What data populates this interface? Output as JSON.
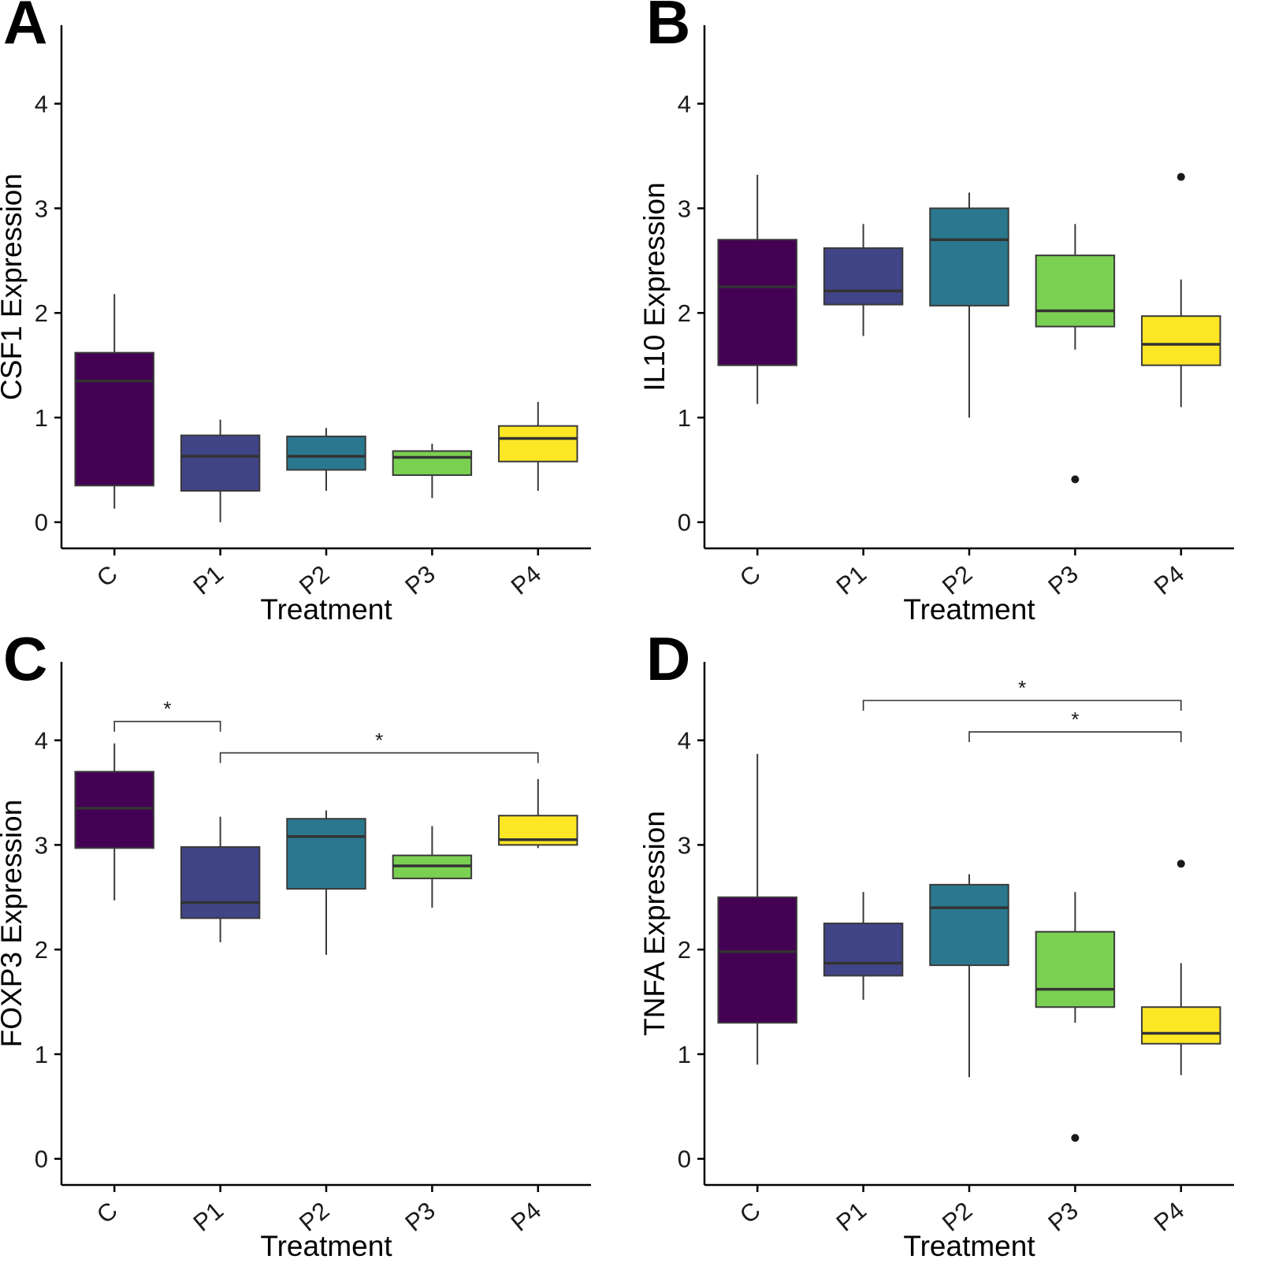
{
  "figure": {
    "background": "#ffffff",
    "axis_color": "#000000",
    "box_border_color": "#3a3a3a",
    "median_color": "#333333",
    "whisker_color": "#3a3a3a",
    "outlier_color": "#1a1a1a",
    "bracket_color": "#333333"
  },
  "chart_data": {
    "type": "boxplot-grid",
    "categories": [
      "C",
      "P1",
      "P2",
      "P3",
      "P4"
    ],
    "category_colors": [
      "#440154",
      "#414487",
      "#2a788e",
      "#7ad151",
      "#fde725"
    ],
    "xlabel": "Treatment",
    "panels": [
      {
        "label": "A",
        "ylabel": "CSF1 Expression",
        "yticks": [
          0,
          1,
          2,
          3,
          4
        ],
        "ylim": [
          -0.25,
          4.75
        ],
        "grid": false,
        "boxes": [
          {
            "category": "C",
            "low": 0.13,
            "q1": 0.35,
            "median": 1.35,
            "q3": 1.62,
            "high": 2.18,
            "outliers": []
          },
          {
            "category": "P1",
            "low": 0.0,
            "q1": 0.3,
            "median": 0.63,
            "q3": 0.83,
            "high": 0.98,
            "outliers": []
          },
          {
            "category": "P2",
            "low": 0.3,
            "q1": 0.5,
            "median": 0.63,
            "q3": 0.82,
            "high": 0.9,
            "outliers": []
          },
          {
            "category": "P3",
            "low": 0.23,
            "q1": 0.45,
            "median": 0.62,
            "q3": 0.68,
            "high": 0.75,
            "outliers": []
          },
          {
            "category": "P4",
            "low": 0.3,
            "q1": 0.58,
            "median": 0.8,
            "q3": 0.92,
            "high": 1.15,
            "outliers": []
          }
        ],
        "brackets": []
      },
      {
        "label": "B",
        "ylabel": "IL10 Expression",
        "yticks": [
          0,
          1,
          2,
          3,
          4
        ],
        "ylim": [
          -0.25,
          4.75
        ],
        "grid": false,
        "boxes": [
          {
            "category": "C",
            "low": 1.13,
            "q1": 1.5,
            "median": 2.25,
            "q3": 2.7,
            "high": 3.32,
            "outliers": []
          },
          {
            "category": "P1",
            "low": 1.78,
            "q1": 2.08,
            "median": 2.21,
            "q3": 2.62,
            "high": 2.85,
            "outliers": []
          },
          {
            "category": "P2",
            "low": 1.0,
            "q1": 2.07,
            "median": 2.7,
            "q3": 3.0,
            "high": 3.15,
            "outliers": []
          },
          {
            "category": "P3",
            "low": 1.65,
            "q1": 1.87,
            "median": 2.02,
            "q3": 2.55,
            "high": 2.85,
            "outliers": [
              0.41
            ]
          },
          {
            "category": "P4",
            "low": 1.1,
            "q1": 1.5,
            "median": 1.7,
            "q3": 1.97,
            "high": 2.32,
            "outliers": [
              3.3
            ]
          }
        ],
        "brackets": []
      },
      {
        "label": "C",
        "ylabel": "FOXP3 Expression",
        "yticks": [
          0,
          1,
          2,
          3,
          4
        ],
        "ylim": [
          -0.25,
          4.75
        ],
        "grid": false,
        "boxes": [
          {
            "category": "C",
            "low": 2.47,
            "q1": 2.97,
            "median": 3.35,
            "q3": 3.7,
            "high": 3.97,
            "outliers": []
          },
          {
            "category": "P1",
            "low": 2.07,
            "q1": 2.3,
            "median": 2.45,
            "q3": 2.98,
            "high": 3.27,
            "outliers": []
          },
          {
            "category": "P2",
            "low": 1.95,
            "q1": 2.58,
            "median": 3.08,
            "q3": 3.25,
            "high": 3.33,
            "outliers": []
          },
          {
            "category": "P3",
            "low": 2.4,
            "q1": 2.68,
            "median": 2.8,
            "q3": 2.9,
            "high": 3.18,
            "outliers": []
          },
          {
            "category": "P4",
            "low": 2.97,
            "q1": 3.0,
            "median": 3.05,
            "q3": 3.28,
            "high": 3.63,
            "outliers": []
          }
        ],
        "brackets": [
          {
            "from": 0,
            "to": 1,
            "y": 4.18,
            "label": "*"
          },
          {
            "from": 1,
            "to": 4,
            "y": 3.88,
            "label": "*"
          }
        ]
      },
      {
        "label": "D",
        "ylabel": "TNFA Expression",
        "yticks": [
          0,
          1,
          2,
          3,
          4
        ],
        "ylim": [
          -0.25,
          4.75
        ],
        "grid": false,
        "boxes": [
          {
            "category": "C",
            "low": 0.9,
            "q1": 1.3,
            "median": 1.98,
            "q3": 2.5,
            "high": 3.87,
            "outliers": []
          },
          {
            "category": "P1",
            "low": 1.52,
            "q1": 1.75,
            "median": 1.87,
            "q3": 2.25,
            "high": 2.55,
            "outliers": []
          },
          {
            "category": "P2",
            "low": 0.78,
            "q1": 1.85,
            "median": 2.4,
            "q3": 2.62,
            "high": 2.72,
            "outliers": []
          },
          {
            "category": "P3",
            "low": 1.3,
            "q1": 1.45,
            "median": 1.62,
            "q3": 2.17,
            "high": 2.55,
            "outliers": [
              0.2
            ]
          },
          {
            "category": "P4",
            "low": 0.8,
            "q1": 1.1,
            "median": 1.2,
            "q3": 1.45,
            "high": 1.87,
            "outliers": [
              2.82
            ]
          }
        ],
        "brackets": [
          {
            "from": 1,
            "to": 4,
            "y": 4.38,
            "label": "*"
          },
          {
            "from": 2,
            "to": 4,
            "y": 4.08,
            "label": "*"
          }
        ]
      }
    ]
  }
}
